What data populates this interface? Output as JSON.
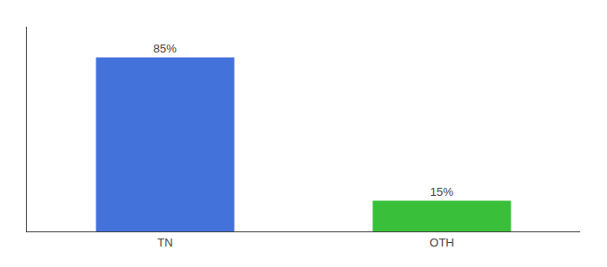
{
  "chart_data": {
    "type": "bar",
    "categories": [
      "TN",
      "OTH"
    ],
    "values": [
      85,
      15
    ],
    "value_labels": [
      "85%",
      "15%"
    ],
    "colors": [
      "#4472db",
      "#3abf3a"
    ],
    "ylim": [
      0,
      100
    ],
    "yticks": [],
    "grid": false,
    "data_labels": true,
    "tick_labels": "x"
  }
}
